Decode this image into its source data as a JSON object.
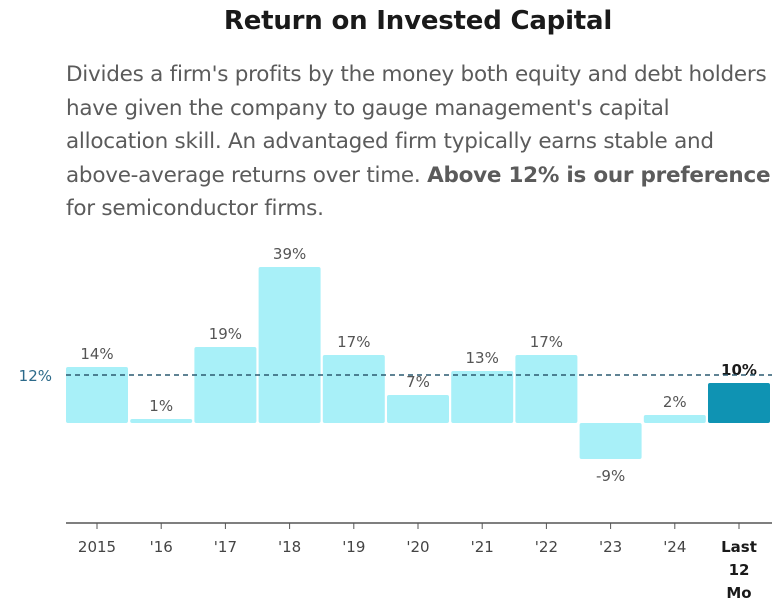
{
  "title": "Return on Invested Capital",
  "description": {
    "part1": "Divides a firm's profits by the money both equity and debt holders have given the company to gauge management's capital allocation skill. An advantaged firm typically earns stable and above-average returns over time. ",
    "bold": "Above 12% is our preference",
    "part2": " for semiconductor firms."
  },
  "chart_data": {
    "type": "bar",
    "categories": [
      "2015",
      "'16",
      "'17",
      "'18",
      "'19",
      "'20",
      "'21",
      "'22",
      "'23",
      "'24",
      "Last 12 Mo"
    ],
    "values": [
      14,
      1,
      19,
      39,
      17,
      7,
      13,
      17,
      -9,
      2,
      10
    ],
    "value_labels": [
      "14%",
      "1%",
      "19%",
      "39%",
      "17%",
      "7%",
      "13%",
      "17%",
      "-9%",
      "2%",
      "10%"
    ],
    "highlight_index": 10,
    "reference_line": {
      "value": 12,
      "label": "12%"
    },
    "ylim": [
      -25,
      40
    ],
    "colors": {
      "bar": "#a8f0f8",
      "highlight": "#0f93b3",
      "reference": "#2c5a70",
      "axis": "#555555"
    }
  }
}
